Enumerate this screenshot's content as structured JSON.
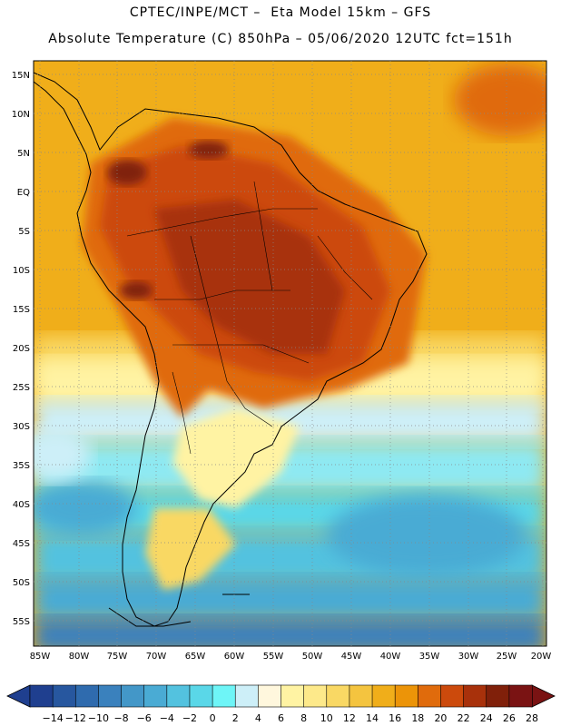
{
  "header": {
    "line1": "CPTEC/INPE/MCT –  Eta Model 15km – GFS",
    "line2": "Absolute Temperature (C) 850hPa – 05/06/2020 12UTC fct=151h"
  },
  "map": {
    "lat_labels": [
      "15N",
      "10N",
      "5N",
      "EQ",
      "5S",
      "10S",
      "15S",
      "20S",
      "25S",
      "30S",
      "35S",
      "40S",
      "45S",
      "50S",
      "55S"
    ],
    "lon_labels": [
      "85W",
      "80W",
      "75W",
      "70W",
      "65W",
      "60W",
      "55W",
      "50W",
      "45W",
      "40W",
      "35W",
      "30W",
      "25W",
      "20W"
    ]
  },
  "colorbar": {
    "labels": [
      "-14",
      "-12",
      "-10",
      "-8",
      "-6",
      "-4",
      "-2",
      "0",
      "2",
      "4",
      "6",
      "8",
      "10",
      "12",
      "14",
      "16",
      "18",
      "20",
      "22",
      "24",
      "26",
      "28"
    ],
    "colors": [
      "#1f3f8f",
      "#27579f",
      "#2f6bae",
      "#3a81bd",
      "#4397c8",
      "#4aabd4",
      "#53c2df",
      "#5ad7e8",
      "#6ef5f7",
      "#cdeff8",
      "#fff7dd",
      "#fff3a3",
      "#fde98a",
      "#f9d864",
      "#f4c43f",
      "#f0ae1a",
      "#ec9408",
      "#e06b0c",
      "#cc4a0c",
      "#a8310b",
      "#80200a",
      "#7a1313"
    ],
    "min": -14,
    "max": 28,
    "step": 2
  }
}
